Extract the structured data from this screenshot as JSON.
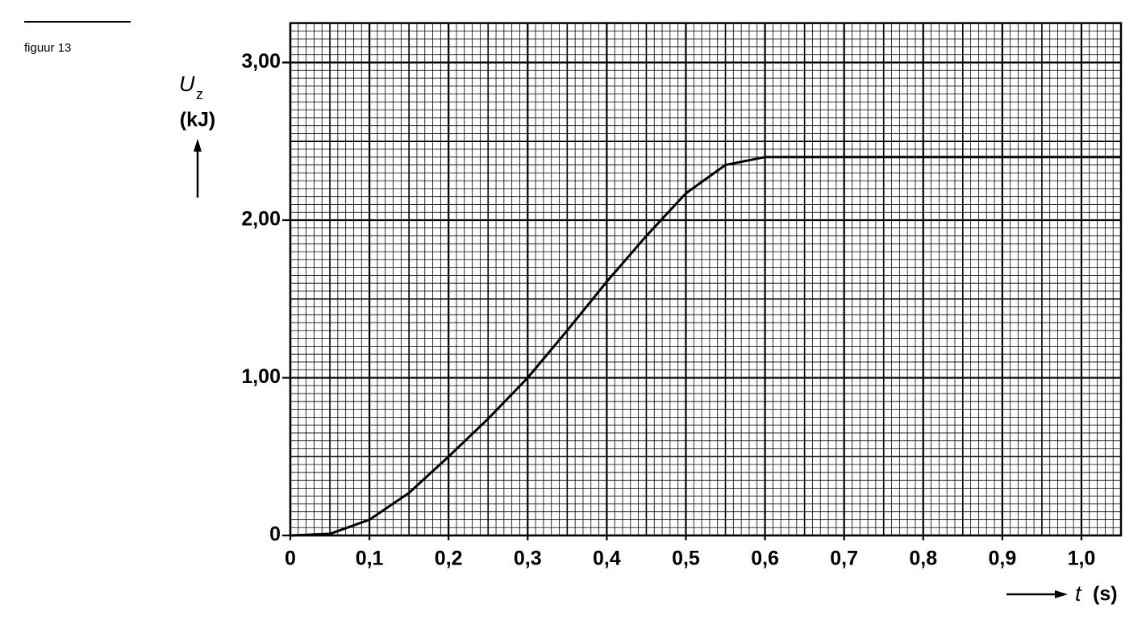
{
  "figure_label": "figuur 13",
  "chart_data": {
    "type": "line",
    "y_label": "U",
    "y_label_sub": "z",
    "y_unit": "(kJ)",
    "x_label": "t",
    "x_unit": "(s)",
    "x": [
      0,
      0.05,
      0.1,
      0.15,
      0.2,
      0.25,
      0.3,
      0.35,
      0.4,
      0.45,
      0.5,
      0.55,
      0.6,
      0.65,
      0.7,
      0.8,
      0.9,
      1.0,
      1.05
    ],
    "series": [
      {
        "color": "#000000",
        "values": [
          0,
          0.01,
          0.1,
          0.27,
          0.5,
          0.74,
          1.0,
          1.3,
          1.61,
          1.9,
          2.17,
          2.35,
          2.4,
          2.4,
          2.4,
          2.4,
          2.4,
          2.4,
          2.4
        ]
      }
    ],
    "xlim": [
      0,
      1.05
    ],
    "ylim": [
      0,
      3.25
    ],
    "xticks": [
      0,
      {
        "value": 0.1,
        "label": "0,1"
      },
      {
        "value": 0.2,
        "label": "0,2"
      },
      {
        "value": 0.3,
        "label": "0,3"
      },
      {
        "value": 0.4,
        "label": "0,4"
      },
      {
        "value": 0.5,
        "label": "0,5"
      },
      {
        "value": 0.6,
        "label": "0,6"
      },
      {
        "value": 0.7,
        "label": "0,7"
      },
      {
        "value": 0.8,
        "label": "0,8"
      },
      {
        "value": 0.9,
        "label": "0,9"
      },
      {
        "value": 1.0,
        "label": "1,0"
      }
    ],
    "yticks": [
      0,
      {
        "value": 1,
        "label": "1,00"
      },
      {
        "value": 2,
        "label": "2,00"
      },
      {
        "value": 3,
        "label": "3,00"
      }
    ],
    "grid": true
  }
}
